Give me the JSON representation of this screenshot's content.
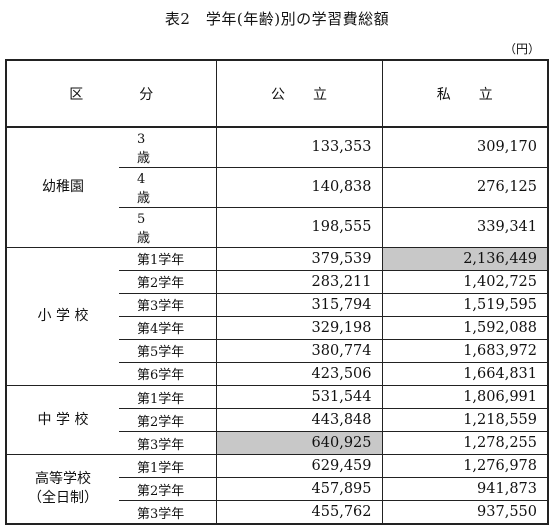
{
  "title": "表2　学年(年齢)別の学習費総額",
  "unit": "（円）",
  "header": {
    "category": "区　　　　分",
    "public": "公　　立",
    "private": "私　　立"
  },
  "groups": [
    {
      "name": "幼稚園",
      "name_line2": "",
      "rows": [
        {
          "label": "3　歳",
          "public": "133,353",
          "private": "309,170"
        },
        {
          "label": "4　歳",
          "public": "140,838",
          "private": "276,125"
        },
        {
          "label": "5　歳",
          "public": "198,555",
          "private": "339,341"
        }
      ]
    },
    {
      "name": "小 学 校",
      "name_line2": "",
      "rows": [
        {
          "label": "第1学年",
          "public": "379,539",
          "private": "2,136,449"
        },
        {
          "label": "第2学年",
          "public": "283,211",
          "private": "1,402,725"
        },
        {
          "label": "第3学年",
          "public": "315,794",
          "private": "1,519,595"
        },
        {
          "label": "第4学年",
          "public": "329,198",
          "private": "1,592,088"
        },
        {
          "label": "第5学年",
          "public": "380,774",
          "private": "1,683,972"
        },
        {
          "label": "第6学年",
          "public": "423,506",
          "private": "1,664,831"
        }
      ]
    },
    {
      "name": "中 学 校",
      "name_line2": "",
      "rows": [
        {
          "label": "第1学年",
          "public": "531,544",
          "private": "1,806,991"
        },
        {
          "label": "第2学年",
          "public": "443,848",
          "private": "1,218,559"
        },
        {
          "label": "第3学年",
          "public": "640,925",
          "private": "1,278,255"
        }
      ]
    },
    {
      "name": "高等学校",
      "name_line2": "（全日制）",
      "rows": [
        {
          "label": "第1学年",
          "public": "629,459",
          "private": "1,276,978"
        },
        {
          "label": "第2学年",
          "public": "457,895",
          "private": "941,873"
        },
        {
          "label": "第3学年",
          "public": "455,762",
          "private": "937,550"
        }
      ]
    }
  ],
  "highlight_color": "#c8c8c8"
}
